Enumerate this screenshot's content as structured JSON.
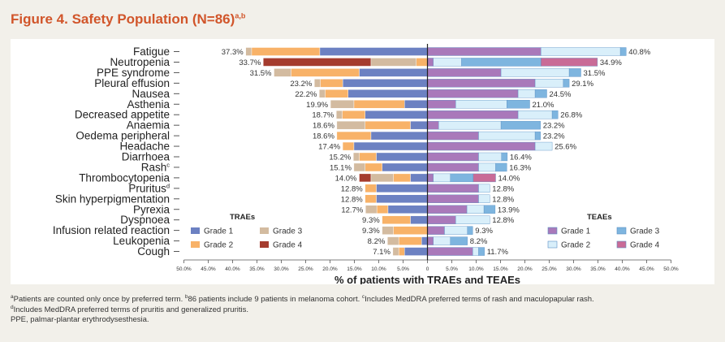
{
  "figure": {
    "title": "Figure 4. Safety Population (N=86)",
    "title_sup": "a,b"
  },
  "footnotes": [
    {
      "sup": "a",
      "text": "Patients are counted only once by preferred term. "
    },
    {
      "sup": "b",
      "text": "86 patients include 9 patients in melanoma cohort. "
    },
    {
      "sup": "c",
      "text": "Includes MedDRA preferred terms of rash and maculopapular rash."
    }
  ],
  "footnote2": {
    "sup": "d",
    "text": "Includes MedDRA preferred terms of pruritis and generalized pruritis."
  },
  "footnote3": "PPE, palmar-plantar erythrodysesthesia.",
  "chart_data": {
    "type": "bar",
    "orientation": "horizontal",
    "layout": "diverging",
    "xlabel": "% of patients with TRAEs and TEAEs",
    "xlim": [
      -50,
      50
    ],
    "xticks": [
      "50.0%",
      "45.0%",
      "40.0%",
      "35.0%",
      "30.0%",
      "25.0%",
      "20.0%",
      "15.0%",
      "10.0%",
      "5.0%",
      "0",
      "5.0%",
      "10.0%",
      "15.0%",
      "20.0%",
      "25.0%",
      "30.0%",
      "35.0%",
      "40.0%",
      "45.0%",
      "50.0%"
    ],
    "categories": [
      {
        "label": "Fatigue"
      },
      {
        "label": "Neutropenia"
      },
      {
        "label": "PPE syndrome"
      },
      {
        "label": "Pleural effusion"
      },
      {
        "label": "Nausea"
      },
      {
        "label": "Asthenia"
      },
      {
        "label": "Decreased appetite"
      },
      {
        "label": "Anaemia"
      },
      {
        "label": "Oedema peripheral"
      },
      {
        "label": "Headache"
      },
      {
        "label": "Diarrhoea"
      },
      {
        "label": "Rash",
        "sup": "c"
      },
      {
        "label": "Thrombocytopenia"
      },
      {
        "label": "Pruritus",
        "sup": "d"
      },
      {
        "label": "Skin hyperpigmentation"
      },
      {
        "label": "Pyrexia"
      },
      {
        "label": "Dyspnoea"
      },
      {
        "label": "Infusion related reaction"
      },
      {
        "label": "Leukopenia"
      },
      {
        "label": "Cough"
      }
    ],
    "traes": {
      "legend_title": "TRAEs",
      "grades": [
        "Grade 1",
        "Grade 2",
        "Grade 3",
        "Grade 4"
      ],
      "colors": [
        "#6c81c2",
        "#f8b268",
        "#d3bba0",
        "#a53c2e"
      ],
      "totals": [
        "37.3%",
        "33.7%",
        "31.5%",
        "23.2%",
        "22.2%",
        "19.9%",
        "18.7%",
        "18.6%",
        "18.6%",
        "17.4%",
        "15.2%",
        "15.1%",
        "14.0%",
        "12.8%",
        "12.8%",
        "12.7%",
        "9.3%",
        "9.3%",
        "8.2%",
        "7.1%"
      ],
      "values": [
        [
          22.1,
          14.0,
          1.2,
          0
        ],
        [
          0,
          2.3,
          9.3,
          22.1
        ],
        [
          14.0,
          14.0,
          3.5,
          0
        ],
        [
          17.4,
          4.6,
          1.2,
          0
        ],
        [
          16.3,
          4.7,
          1.2,
          0
        ],
        [
          4.7,
          10.4,
          4.8,
          0
        ],
        [
          12.8,
          4.7,
          1.2,
          0
        ],
        [
          3.5,
          9.3,
          5.8,
          0
        ],
        [
          11.6,
          7.0,
          0,
          0
        ],
        [
          15.1,
          2.3,
          0,
          0
        ],
        [
          10.5,
          3.5,
          1.2,
          0
        ],
        [
          9.3,
          3.5,
          2.3,
          0
        ],
        [
          3.5,
          3.5,
          4.6,
          2.4
        ],
        [
          10.5,
          2.3,
          0,
          0
        ],
        [
          10.5,
          2.3,
          0,
          0
        ],
        [
          8.1,
          2.3,
          2.3,
          0
        ],
        [
          3.5,
          5.8,
          0,
          0
        ],
        [
          0,
          7.0,
          2.3,
          0
        ],
        [
          1.2,
          4.7,
          2.3,
          0
        ],
        [
          4.7,
          1.2,
          1.2,
          0
        ]
      ]
    },
    "teaes": {
      "legend_title": "TEAEs",
      "grades": [
        "Grade 1",
        "Grade 2",
        "Grade 3",
        "Grade 4"
      ],
      "colors": [
        "#a979ba",
        "#d9effa",
        "#7eb5df",
        "#c96b97"
      ],
      "totals": [
        "40.8%",
        "34.9%",
        "31.5%",
        "29.1%",
        "24.5%",
        "21.0%",
        "26.8%",
        "23.2%",
        "23.2%",
        "25.6%",
        "16.4%",
        "16.3%",
        "14.0%",
        "12.8%",
        "12.8%",
        "13.9%",
        "12.8%",
        "9.3%",
        "8.2%",
        "11.7%"
      ],
      "values": [
        [
          23.3,
          16.3,
          1.2,
          0
        ],
        [
          1.2,
          5.8,
          16.3,
          11.6
        ],
        [
          15.1,
          14.0,
          2.4,
          0
        ],
        [
          22.1,
          5.8,
          1.2,
          0
        ],
        [
          18.6,
          3.5,
          2.4,
          0
        ],
        [
          5.8,
          10.5,
          4.7,
          0
        ],
        [
          18.6,
          7.0,
          1.2,
          0
        ],
        [
          2.3,
          12.8,
          8.1,
          0
        ],
        [
          10.5,
          11.6,
          1.1,
          0
        ],
        [
          22.1,
          3.5,
          0,
          0
        ],
        [
          10.5,
          4.7,
          1.2,
          0
        ],
        [
          10.5,
          3.5,
          2.3,
          0
        ],
        [
          1.2,
          3.5,
          4.7,
          4.6
        ],
        [
          10.5,
          2.3,
          0,
          0
        ],
        [
          10.5,
          2.3,
          0,
          0
        ],
        [
          8.1,
          3.5,
          2.3,
          0
        ],
        [
          5.8,
          7.0,
          0,
          0
        ],
        [
          3.5,
          4.7,
          1.1,
          0
        ],
        [
          1.2,
          3.5,
          3.5,
          0
        ],
        [
          9.3,
          1.2,
          1.2,
          0
        ]
      ]
    }
  }
}
